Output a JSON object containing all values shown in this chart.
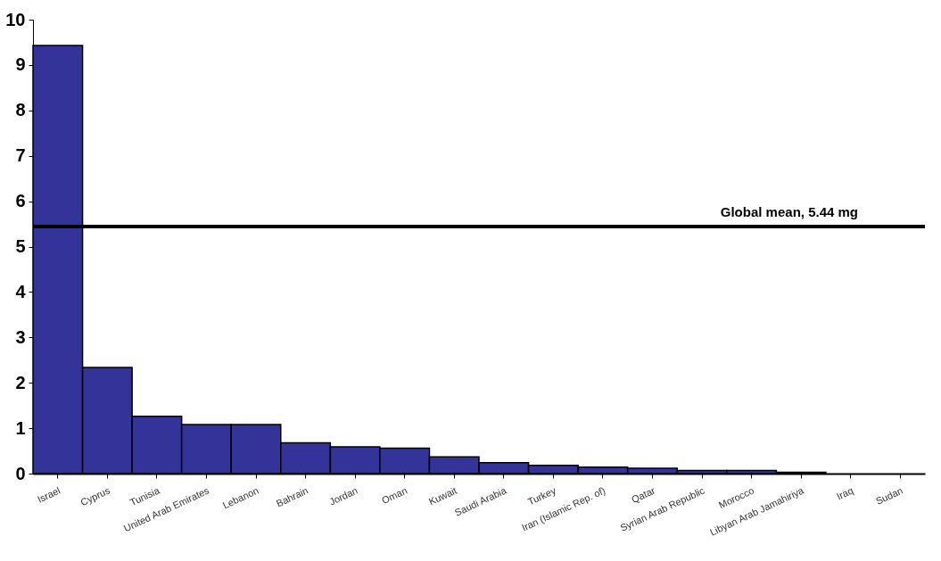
{
  "chart_data": {
    "type": "bar",
    "categories": [
      "Israel",
      "Cyprus",
      "Tunisia",
      "United Arab Emirates",
      "Lebanon",
      "Bahrain",
      "Jordan",
      "Oman",
      "Kuwait",
      "Saudi Arabia",
      "Turkey",
      "Iran (Islamic Rep. of)",
      "Qatar",
      "Syrian Arab Republic",
      "Morocco",
      "Libyan Arab Jamahiriya",
      "Iraq",
      "Sudan"
    ],
    "values": [
      9.43,
      2.34,
      1.26,
      1.08,
      1.08,
      0.68,
      0.59,
      0.56,
      0.37,
      0.24,
      0.18,
      0.14,
      0.12,
      0.07,
      0.07,
      0.03,
      0,
      0
    ],
    "color": "#333399",
    "ylim": [
      0,
      10
    ],
    "yticks": [
      0,
      1,
      2,
      3,
      4,
      5,
      6,
      7,
      8,
      9,
      10
    ],
    "grid": false,
    "ref_lines": [
      {
        "axis": "y",
        "value": 5.44,
        "label": "Global mean, 5.44 mg",
        "color": "#000000"
      }
    ]
  }
}
